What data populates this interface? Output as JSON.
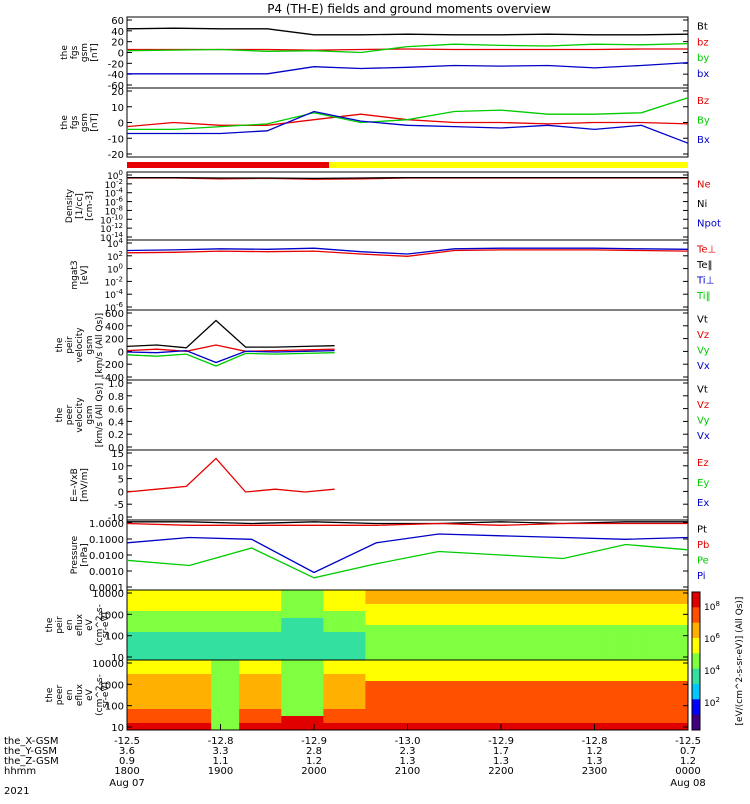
{
  "title": "P4 (TH-E) fields and ground moments overview",
  "chart_data": {
    "type": "line",
    "title": "P4 (TH-E) fields and ground moments overview",
    "x_tick_labels": [
      "1800",
      "1900",
      "2000",
      "2100",
      "2200",
      "2300",
      "0000"
    ],
    "date_start": "Aug 07",
    "date_end": "Aug 08",
    "year": "2021",
    "x_rows": {
      "labels": [
        "the_X-GSM",
        "the_Y-GSM",
        "the_Z-GSM",
        "hhmm"
      ],
      "x_gsm": [
        "-12.5",
        "-12.8",
        "-12.9",
        "-13.0",
        "-12.9",
        "-12.8",
        "-12.5"
      ],
      "y_gsm": [
        "3.6",
        "3.3",
        "2.8",
        "2.3",
        "1.7",
        "1.2",
        "0.7"
      ],
      "z_gsm": [
        "0.9",
        "1.1",
        "1.2",
        "1.3",
        "1.3",
        "1.3",
        "1.2"
      ]
    },
    "panels": [
      {
        "id": "fgs-gsm",
        "ylabel": [
          "the",
          "fgs",
          "gsm",
          "[nT]"
        ],
        "ylim": [
          -60,
          60
        ],
        "ticks": [
          "60",
          "40",
          "20",
          "0",
          "-20",
          "-40",
          "-60"
        ],
        "legend": [
          "Bt",
          "bz",
          "by",
          "bx"
        ],
        "series": [
          {
            "name": "Bt",
            "color": "#000000",
            "values": [
              40,
              41,
              40,
              40,
              30,
              30,
              31,
              30,
              30,
              31,
              30,
              30,
              31
            ]
          },
          {
            "name": "bz",
            "color": "#e60000",
            "values": [
              5,
              5,
              5,
              5,
              4,
              5,
              6,
              5,
              5,
              5,
              5,
              6,
              6
            ]
          },
          {
            "name": "by",
            "color": "#00cc00",
            "values": [
              3,
              4,
              5,
              2,
              3,
              0,
              10,
              14,
              12,
              11,
              14,
              13,
              15
            ]
          },
          {
            "name": "bx",
            "color": "#0000c8",
            "values": [
              -36,
              -36,
              -36,
              -36,
              -24,
              -27,
              -25,
              -22,
              -23,
              -22,
              -26,
              -22,
              -17
            ]
          }
        ]
      },
      {
        "id": "fgs-gsm-detrend",
        "ylabel": [
          "the",
          "fgs",
          "gsm",
          "[nT]"
        ],
        "ylim": [
          -25,
          25
        ],
        "ticks": [
          "20",
          "10",
          "0",
          "-10",
          "-20"
        ],
        "legend": [
          "Bz",
          "By",
          "Bx"
        ],
        "series": [
          {
            "name": "Bz",
            "color": "#e60000",
            "values": [
              -3,
              0,
              -2,
              -2,
              2,
              6,
              2,
              0,
              0,
              -1,
              0,
              0,
              -1
            ]
          },
          {
            "name": "By",
            "color": "#00cc00",
            "values": [
              -5,
              -5,
              -3,
              -1,
              7,
              0,
              2,
              8,
              9,
              6,
              6,
              7,
              18
            ]
          },
          {
            "name": "Bx",
            "color": "#0000c8",
            "values": [
              -8,
              -8,
              -8,
              -6,
              8,
              1,
              -2,
              -3,
              -4,
              -2,
              -5,
              -2,
              -15
            ]
          }
        ]
      },
      {
        "id": "density",
        "ylabel": [
          "Density",
          "[1/cc]",
          "[cm-3]"
        ],
        "ylim": [
          -15,
          2
        ],
        "log": true,
        "ticks": [
          "10^0",
          "10^-2",
          "10^-4",
          "10^-6",
          "10^-8",
          "10^-10",
          "10^-12",
          "10^-14"
        ],
        "legend": [
          "Ne",
          "Ni",
          "Npot"
        ],
        "series": [
          {
            "name": "Ne",
            "color": "#e60000",
            "values": [
              0.5,
              0.5,
              0.3,
              0.4,
              0.2,
              0.3,
              0.5,
              0.5,
              0.5,
              0.5,
              0.5,
              0.5,
              0.5
            ]
          },
          {
            "name": "Ni",
            "color": "#000000",
            "values": [
              0.6,
              0.6,
              0.5,
              0.5,
              0.4,
              0.5,
              0.6,
              0.6,
              0.6,
              0.6,
              0.6,
              0.6,
              0.6
            ]
          }
        ]
      },
      {
        "id": "temperature",
        "ylabel": [
          "mgat3",
          "[eV]"
        ],
        "ylim": [
          -7,
          5
        ],
        "log": true,
        "ticks": [
          "10^4",
          "10^2",
          "10^0",
          "10^-2",
          "10^-4",
          "10^-6"
        ],
        "legend": [
          "Te⊥",
          "Te‖",
          "Ti⊥",
          "Ti‖"
        ],
        "series": [
          {
            "name": "Ti⊥",
            "color": "#0000c8",
            "values": [
              3.2,
              3.3,
              3.5,
              3.4,
              3.6,
              3.0,
              2.6,
              3.5,
              3.6,
              3.6,
              3.6,
              3.5,
              3.4
            ]
          },
          {
            "name": "Te⊥",
            "color": "#e60000",
            "values": [
              2.8,
              2.9,
              3.1,
              3.0,
              3.1,
              2.6,
              2.2,
              3.2,
              3.3,
              3.3,
              3.3,
              3.2,
              3.1
            ]
          }
        ]
      },
      {
        "id": "peir-velocity",
        "ylabel": [
          "the",
          "peir",
          "velocity",
          "gsm",
          "[km/s (All Qs)]"
        ],
        "ylim": [
          -400,
          600
        ],
        "ticks": [
          "600",
          "400",
          "200",
          "0",
          "-200",
          "-400"
        ],
        "legend": [
          "Vt",
          "Vz",
          "Vy",
          "Vx"
        ],
        "series": [
          {
            "name": "Vt",
            "color": "#000000",
            "values": [
              80,
              100,
              60,
              450,
              70,
              70,
              80,
              90
            ]
          },
          {
            "name": "Vz",
            "color": "#e60000",
            "values": [
              20,
              40,
              10,
              100,
              10,
              20,
              30,
              40
            ]
          },
          {
            "name": "Vy",
            "color": "#00cc00",
            "values": [
              -40,
              -60,
              -30,
              -200,
              -20,
              -30,
              -20,
              -10
            ]
          },
          {
            "name": "Vx",
            "color": "#0000c8",
            "values": [
              0,
              -10,
              20,
              -150,
              10,
              0,
              10,
              20
            ]
          }
        ]
      },
      {
        "id": "peer-velocity",
        "ylabel": [
          "the",
          "peer",
          "velocity",
          "gsm",
          "[km/s (All Qs)]"
        ],
        "ylim": [
          0,
          1
        ],
        "ticks": [
          "1.0",
          "0.8",
          "0.6",
          "0.4",
          "0.2",
          "0.0"
        ],
        "legend": [
          "Vt",
          "Vz",
          "Vy",
          "Vx"
        ],
        "series": []
      },
      {
        "id": "efield",
        "ylabel": [
          "E=-VxB",
          "[mV/m]"
        ],
        "ylim": [
          -10,
          15
        ],
        "ticks": [
          "15",
          "10",
          "5",
          "0",
          "-5",
          "-10"
        ],
        "legend": [
          "Ez",
          "Ey",
          "Ex"
        ],
        "series": [
          {
            "name": "Ez",
            "color": "#e60000",
            "values": [
              0,
              1,
              2,
              12,
              0,
              1,
              0,
              1
            ]
          }
        ]
      },
      {
        "id": "pressure",
        "ylabel": [
          "Pressure",
          "[nPa]"
        ],
        "ylim": [
          -4,
          0
        ],
        "log": true,
        "ticks": [
          "1.0000",
          "0.1000",
          "0.0100",
          "0.0010",
          "0.0001"
        ],
        "legend": [
          "Pt",
          "Pb",
          "Pe",
          "Pi"
        ],
        "series": [
          {
            "name": "Pt",
            "color": "#000000",
            "values": [
              -0.1,
              -0.1,
              -0.2,
              -0.1,
              -0.2,
              -0.2,
              -0.1,
              -0.2,
              -0.1,
              -0.1
            ]
          },
          {
            "name": "Pb",
            "color": "#e60000",
            "values": [
              -0.2,
              -0.3,
              -0.3,
              -0.3,
              -0.3,
              -0.2,
              -0.3,
              -0.2,
              -0.2,
              -0.2
            ]
          },
          {
            "name": "Pe",
            "color": "#00cc00",
            "values": [
              -2.3,
              -2.6,
              -1.6,
              -3.3,
              -2.5,
              -1.8,
              -2.0,
              -2.2,
              -1.4,
              -1.7
            ]
          },
          {
            "name": "Pi",
            "color": "#0000c8",
            "values": [
              -1.3,
              -1.0,
              -1.1,
              -3.0,
              -1.3,
              -0.8,
              -0.9,
              -1.0,
              -1.1,
              -1.0
            ]
          }
        ]
      },
      {
        "id": "peir-eflux",
        "type": "heatmap",
        "ylabel": [
          "the",
          "peir",
          "en",
          "eflux",
          "eV",
          "(cm^2-s-",
          "sr-eV)"
        ],
        "ticks": [
          "10000",
          "1000",
          "100",
          "10"
        ]
      },
      {
        "id": "peer-eflux",
        "type": "heatmap",
        "ylabel": [
          "the",
          "peer",
          "en",
          "eflux",
          "eV",
          "(cm^2-s-",
          "sr-eV)"
        ],
        "ticks": [
          "10000",
          "1000",
          "100",
          "10"
        ]
      }
    ],
    "colorbar": {
      "ticks": [
        "10^8",
        "10^6",
        "10^4",
        "10^2"
      ],
      "label": "[eV/(cm^2-s-sr-eV)] (All Qs)]"
    }
  }
}
